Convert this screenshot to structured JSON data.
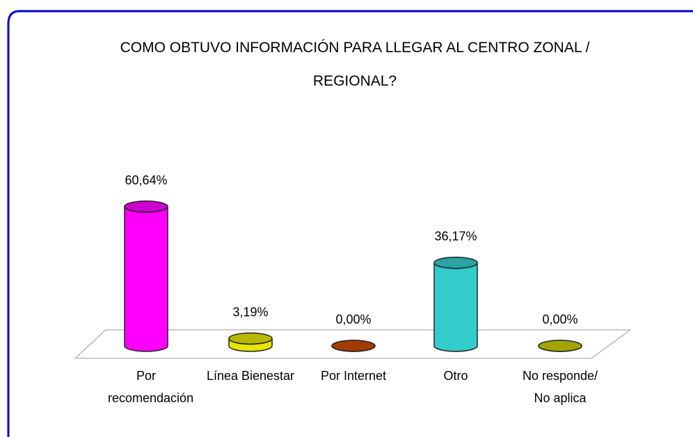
{
  "chart_data": {
    "type": "bar3d",
    "title": "COMO OBTUVO INFORMACIÓN PARA LLEGAR AL CENTRO ZONAL / REGIONAL?",
    "categories": [
      "Por recomendación",
      "Línea Bienestar",
      "Por Internet",
      "Otro",
      "No responde/ No aplica"
    ],
    "values": [
      60.64,
      3.19,
      0.0,
      36.17,
      0.0
    ],
    "value_labels": [
      "60,64%",
      "3,19%",
      "0,00%",
      "36,17%",
      "0,00%"
    ],
    "colors": [
      "#ff00ff",
      "#e6e600",
      "#cc4a00",
      "#33cccc",
      "#cccc00"
    ]
  }
}
